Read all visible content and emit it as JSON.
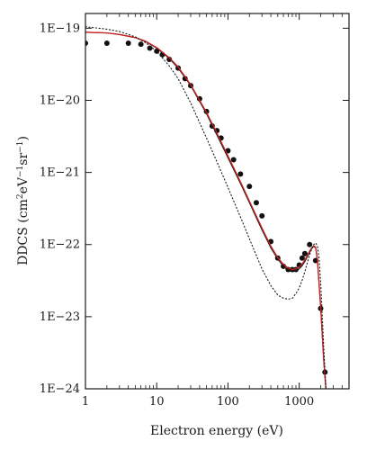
{
  "chart_data": {
    "type": "scatter",
    "xlabel": "Electron energy (eV)",
    "ylabel_parts": [
      "DDCS (cm",
      "2",
      "eV",
      "−1",
      "sr",
      "−1",
      ")"
    ],
    "xscale": "log",
    "yscale": "log",
    "xlim": [
      1,
      5000
    ],
    "ylim": [
      1e-24,
      1.6e-19
    ],
    "x_ticks": [
      1,
      10,
      100,
      1000
    ],
    "x_tick_labels": [
      "1",
      "10",
      "100",
      "1000"
    ],
    "y_ticks": [
      1e-24,
      1e-23,
      1e-22,
      1e-21,
      1e-20,
      1e-19
    ],
    "y_tick_labels": [
      "1E−24",
      "1E−23",
      "1E−22",
      "1E−21",
      "1E−20",
      "1E−19"
    ],
    "grid": false,
    "legend": false,
    "series": [
      {
        "style": "points",
        "color": "#111111",
        "x": [
          1,
          2,
          4,
          6,
          8,
          10,
          12,
          15,
          20,
          25,
          30,
          40,
          50,
          60,
          70,
          80,
          100,
          120,
          150,
          200,
          250,
          300,
          400,
          500,
          600,
          700,
          800,
          900,
          1000,
          1100,
          1200,
          1400,
          1700,
          2000,
          2300
        ],
        "y": [
          6.2e-20,
          6.2e-20,
          6.2e-20,
          6e-20,
          5.3e-20,
          4.8e-20,
          4.3e-20,
          3.7e-20,
          2.8e-20,
          2e-20,
          1.6e-20,
          1.05e-20,
          7e-21,
          4.4e-21,
          3.8e-21,
          3e-21,
          2e-21,
          1.5e-21,
          9.5e-22,
          6.4e-22,
          3.8e-22,
          2.5e-22,
          1.1e-22,
          6.5e-23,
          5e-23,
          4.5e-23,
          4.5e-23,
          4.5e-23,
          5.2e-23,
          6.5e-23,
          7.5e-23,
          1e-22,
          6e-23,
          1.3e-23,
          1.7e-24
        ]
      },
      {
        "style": "solid",
        "color": "#1a1a1a",
        "x": [
          1,
          2,
          3,
          5,
          7,
          10,
          15,
          20,
          30,
          50,
          70,
          100,
          150,
          200,
          300,
          400,
          500,
          600,
          700,
          800,
          900,
          1000,
          1100,
          1200,
          1300,
          1400,
          1500,
          1600,
          1700,
          1800,
          2000,
          2200,
          2400
        ],
        "y": [
          8.8e-20,
          8.6e-20,
          8.2e-20,
          7.4e-20,
          6.5e-20,
          5.3e-20,
          3.8e-20,
          2.8e-20,
          1.6e-20,
          6.5e-21,
          3.3e-21,
          1.6e-21,
          7e-22,
          3.8e-22,
          1.6e-22,
          9e-23,
          6.3e-23,
          5e-23,
          4.4e-23,
          4.2e-23,
          4.3e-23,
          4.6e-23,
          5.1e-23,
          5.8e-23,
          6.8e-23,
          7.8e-23,
          8.8e-23,
          9.4e-23,
          9e-23,
          6e-23,
          1.3e-23,
          2.5e-24,
          8e-25
        ]
      },
      {
        "style": "solid",
        "color": "#cc1f1f",
        "x": [
          1,
          2,
          3,
          5,
          7,
          10,
          15,
          20,
          30,
          50,
          70,
          100,
          150,
          200,
          300,
          400,
          500,
          600,
          700,
          800,
          900,
          1000,
          1100,
          1200,
          1300,
          1400,
          1500,
          1600,
          1700,
          1800,
          2000,
          2200,
          2400
        ],
        "y": [
          8.8e-20,
          8.6e-20,
          8.2e-20,
          7.4e-20,
          6.6e-20,
          5.4e-20,
          3.9e-20,
          2.9e-20,
          1.65e-20,
          6.8e-21,
          3.5e-21,
          1.7e-21,
          7.4e-22,
          4e-22,
          1.7e-22,
          9.5e-23,
          6.6e-23,
          5.3e-23,
          4.7e-23,
          4.5e-23,
          4.6e-23,
          4.9e-23,
          5.4e-23,
          6.1e-23,
          7.1e-23,
          8.1e-23,
          9e-23,
          9.6e-23,
          9.2e-23,
          6.2e-23,
          1.4e-23,
          2.7e-24,
          8.5e-25
        ]
      },
      {
        "style": "dotted",
        "color": "#1a1a1a",
        "x": [
          1,
          2,
          3,
          5,
          7,
          10,
          15,
          20,
          30,
          50,
          70,
          100,
          150,
          200,
          300,
          400,
          500,
          600,
          700,
          800,
          900,
          1000,
          1100,
          1200,
          1300,
          1400,
          1500,
          1600,
          1700,
          1800,
          1900,
          2000,
          2200,
          2400
        ],
        "y": [
          1.05e-19,
          9.7e-20,
          9e-20,
          7.6e-20,
          6.3e-20,
          4.8e-20,
          3e-20,
          2e-20,
          9.2e-21,
          3e-21,
          1.4e-21,
          6.2e-22,
          2.4e-22,
          1.2e-22,
          4.6e-23,
          2.7e-23,
          2e-23,
          1.8e-23,
          1.75e-23,
          1.8e-23,
          2.1e-23,
          2.5e-23,
          3.2e-23,
          4.2e-23,
          5.6e-23,
          7.2e-23,
          8.8e-23,
          1e-22,
          1.05e-22,
          9.5e-23,
          6.5e-23,
          3e-23,
          4e-24,
          8e-25
        ]
      }
    ]
  }
}
